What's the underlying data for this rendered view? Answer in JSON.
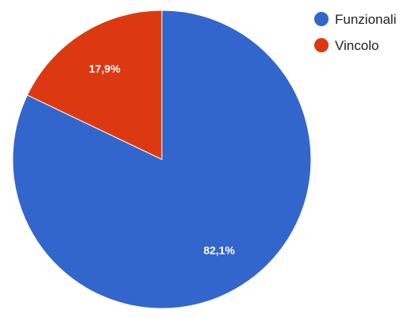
{
  "chart_data": {
    "type": "pie",
    "title": "",
    "slices": [
      {
        "name": "Funzionali",
        "value": 82.1,
        "label": "82,1%",
        "color": "#3366cc"
      },
      {
        "name": "Vincolo",
        "value": 17.9,
        "label": "17,9%",
        "color": "#dc3912"
      }
    ],
    "legend_position": "top-right",
    "start_angle_deg": 0,
    "direction": "clockwise"
  }
}
